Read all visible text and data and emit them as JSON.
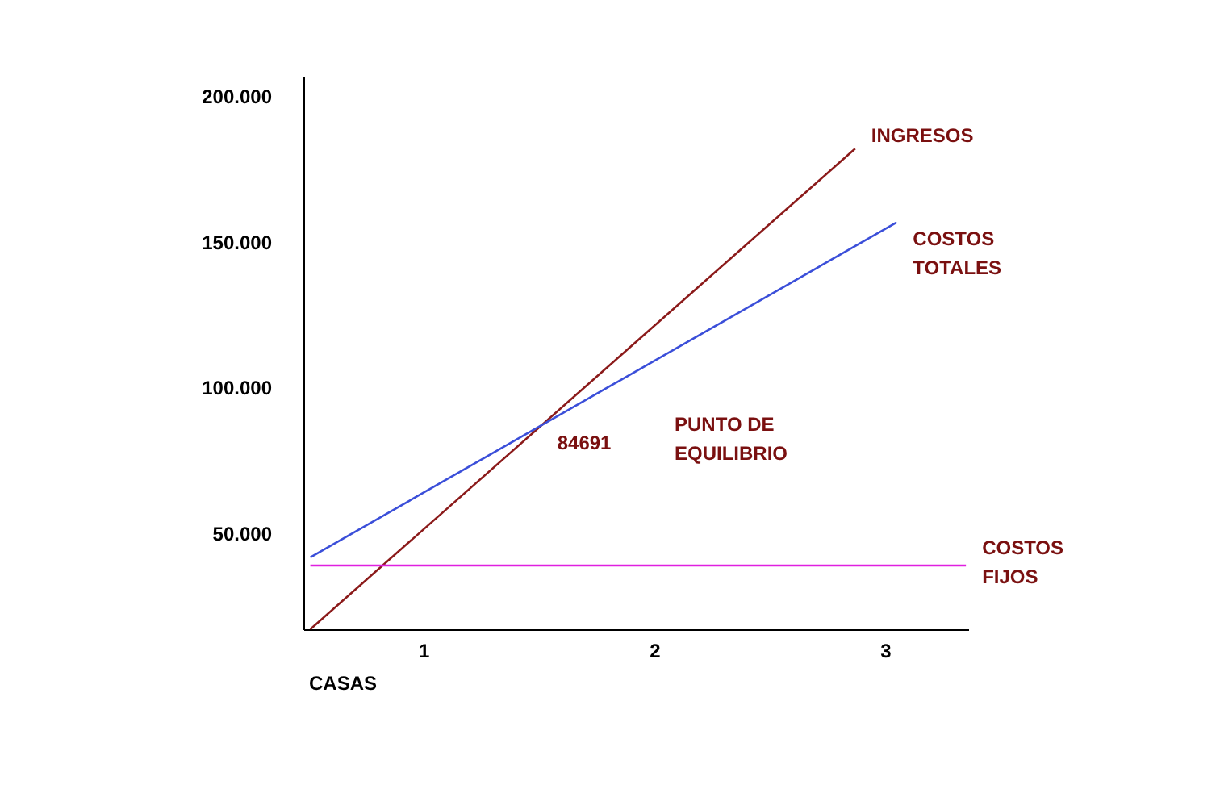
{
  "chart_data": {
    "type": "line",
    "xlabel": "CASAS",
    "xlim": [
      0.48,
      3.36
    ],
    "ylim": [
      17,
      207
    ],
    "xticks": [
      1,
      2,
      3
    ],
    "yticks": [
      {
        "value": 50,
        "label": "50.000"
      },
      {
        "value": 100,
        "label": "100.000"
      },
      {
        "value": 150,
        "label": "150.000"
      },
      {
        "value": 200,
        "label": "200.000"
      }
    ],
    "grid": false,
    "legend": false,
    "marker": "none",
    "line_style": "solid",
    "series": [
      {
        "name": "INGRESOS",
        "color": "#8b1a1a",
        "x": [
          0.51,
          2.87
        ],
        "values": [
          17,
          182
        ]
      },
      {
        "name": "COSTOS TOTALES",
        "color": "#3b4fd9",
        "x": [
          0.51,
          3.05
        ],
        "values": [
          41.7,
          156.7
        ]
      },
      {
        "name": "COSTOS FIJOS",
        "color": "#e020e0",
        "x": [
          0.51,
          3.35
        ],
        "values": [
          38.9,
          38.9
        ]
      }
    ],
    "annotations": [
      {
        "text": "84691",
        "x": 1.51,
        "y": 87
      },
      "PUNTO DE EQUILIBRIO"
    ]
  }
}
